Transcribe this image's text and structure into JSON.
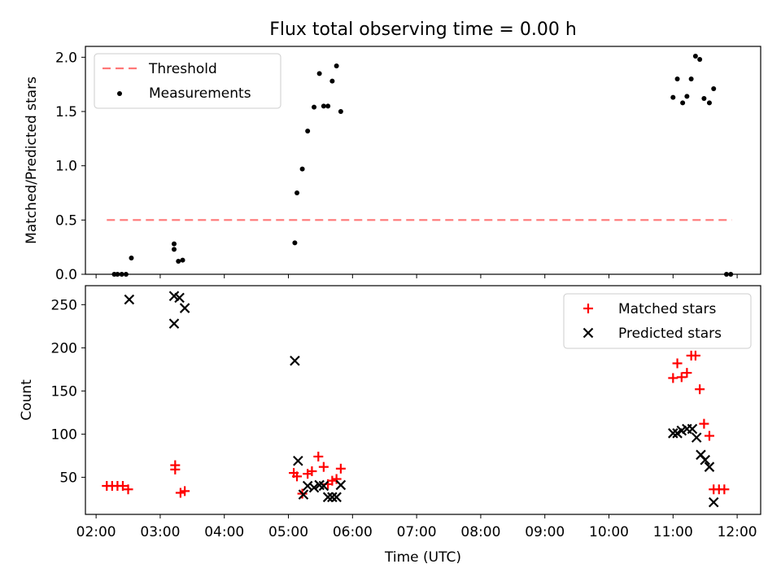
{
  "chart_data": [
    {
      "type": "scatter",
      "title": "Flux total observing time = 0.00 h",
      "xlabel": "",
      "ylabel": "Matched/Predicted stars",
      "xlim": [
        "01:50",
        "12:22"
      ],
      "ylim": [
        0,
        2.1
      ],
      "yticks": [
        "0.0",
        "0.5",
        "1.0",
        "1.5",
        "2.0"
      ],
      "legend_position": "top-left",
      "threshold": {
        "name": "Threshold",
        "color": "#ff7777",
        "style": "dashed",
        "y": 0.5,
        "x_range": [
          "02:10",
          "11:55"
        ]
      },
      "series": [
        {
          "name": "Measurements",
          "marker": "dot",
          "color": "#000000",
          "points": [
            {
              "x": "02:17",
              "y": 0.0
            },
            {
              "x": "02:20",
              "y": 0.0
            },
            {
              "x": "02:24",
              "y": 0.0
            },
            {
              "x": "02:28",
              "y": 0.0
            },
            {
              "x": "02:33",
              "y": 0.15
            },
            {
              "x": "03:13",
              "y": 0.28
            },
            {
              "x": "03:13",
              "y": 0.23
            },
            {
              "x": "03:17",
              "y": 0.12
            },
            {
              "x": "03:21",
              "y": 0.13
            },
            {
              "x": "05:06",
              "y": 0.29
            },
            {
              "x": "05:08",
              "y": 0.75
            },
            {
              "x": "05:13",
              "y": 0.97
            },
            {
              "x": "05:18",
              "y": 1.32
            },
            {
              "x": "05:24",
              "y": 1.54
            },
            {
              "x": "05:29",
              "y": 1.85
            },
            {
              "x": "05:33",
              "y": 1.55
            },
            {
              "x": "05:37",
              "y": 1.55
            },
            {
              "x": "05:41",
              "y": 1.78
            },
            {
              "x": "05:45",
              "y": 1.92
            },
            {
              "x": "05:49",
              "y": 1.5
            },
            {
              "x": "11:00",
              "y": 1.63
            },
            {
              "x": "11:04",
              "y": 1.8
            },
            {
              "x": "11:09",
              "y": 1.58
            },
            {
              "x": "11:13",
              "y": 1.64
            },
            {
              "x": "11:17",
              "y": 1.8
            },
            {
              "x": "11:21",
              "y": 2.01
            },
            {
              "x": "11:25",
              "y": 1.98
            },
            {
              "x": "11:29",
              "y": 1.62
            },
            {
              "x": "11:34",
              "y": 1.58
            },
            {
              "x": "11:38",
              "y": 1.71
            },
            {
              "x": "11:50",
              "y": 0.0
            },
            {
              "x": "11:54",
              "y": 0.0
            }
          ]
        }
      ]
    },
    {
      "type": "scatter",
      "title": "",
      "xlabel": "Time (UTC)",
      "ylabel": "Count",
      "xlim": [
        "01:50",
        "12:22"
      ],
      "ylim": [
        7,
        272
      ],
      "xticks": [
        "02:00",
        "03:00",
        "04:00",
        "05:00",
        "06:00",
        "07:00",
        "08:00",
        "09:00",
        "10:00",
        "11:00",
        "12:00"
      ],
      "yticks": [
        "50",
        "100",
        "150",
        "200",
        "250"
      ],
      "legend_position": "top-right",
      "series": [
        {
          "name": "Matched stars",
          "marker": "plus",
          "color": "#ff0000",
          "points": [
            {
              "x": "02:10",
              "y": 40
            },
            {
              "x": "02:15",
              "y": 40
            },
            {
              "x": "02:20",
              "y": 40
            },
            {
              "x": "02:25",
              "y": 40
            },
            {
              "x": "02:30",
              "y": 36
            },
            {
              "x": "03:14",
              "y": 64
            },
            {
              "x": "03:14",
              "y": 59
            },
            {
              "x": "03:19",
              "y": 32
            },
            {
              "x": "03:23",
              "y": 34
            },
            {
              "x": "05:05",
              "y": 55
            },
            {
              "x": "05:08",
              "y": 51
            },
            {
              "x": "05:13",
              "y": 31
            },
            {
              "x": "05:18",
              "y": 54
            },
            {
              "x": "05:22",
              "y": 57
            },
            {
              "x": "05:28",
              "y": 74
            },
            {
              "x": "05:33",
              "y": 62
            },
            {
              "x": "05:37",
              "y": 42
            },
            {
              "x": "05:41",
              "y": 46
            },
            {
              "x": "05:45",
              "y": 48
            },
            {
              "x": "05:49",
              "y": 60
            },
            {
              "x": "11:00",
              "y": 165
            },
            {
              "x": "11:04",
              "y": 182
            },
            {
              "x": "11:08",
              "y": 166
            },
            {
              "x": "11:13",
              "y": 171
            },
            {
              "x": "11:17",
              "y": 191
            },
            {
              "x": "11:21",
              "y": 191
            },
            {
              "x": "11:25",
              "y": 152
            },
            {
              "x": "11:29",
              "y": 112
            },
            {
              "x": "11:34",
              "y": 98
            },
            {
              "x": "11:38",
              "y": 36
            },
            {
              "x": "11:43",
              "y": 36
            },
            {
              "x": "11:48",
              "y": 36
            }
          ]
        },
        {
          "name": "Predicted stars",
          "marker": "x",
          "color": "#000000",
          "points": [
            {
              "x": "02:31",
              "y": 256
            },
            {
              "x": "03:13",
              "y": 260
            },
            {
              "x": "03:13",
              "y": 228
            },
            {
              "x": "03:18",
              "y": 258
            },
            {
              "x": "03:23",
              "y": 246
            },
            {
              "x": "05:06",
              "y": 185
            },
            {
              "x": "05:09",
              "y": 69
            },
            {
              "x": "05:14",
              "y": 30
            },
            {
              "x": "05:18",
              "y": 40
            },
            {
              "x": "05:24",
              "y": 38
            },
            {
              "x": "05:29",
              "y": 41
            },
            {
              "x": "05:33",
              "y": 40
            },
            {
              "x": "05:37",
              "y": 27
            },
            {
              "x": "05:41",
              "y": 27
            },
            {
              "x": "05:45",
              "y": 27
            },
            {
              "x": "05:49",
              "y": 41
            },
            {
              "x": "11:00",
              "y": 101
            },
            {
              "x": "11:04",
              "y": 101
            },
            {
              "x": "11:08",
              "y": 104
            },
            {
              "x": "11:13",
              "y": 106
            },
            {
              "x": "11:18",
              "y": 106
            },
            {
              "x": "11:22",
              "y": 96
            },
            {
              "x": "11:26",
              "y": 76
            },
            {
              "x": "11:30",
              "y": 70
            },
            {
              "x": "11:34",
              "y": 62
            },
            {
              "x": "11:38",
              "y": 21
            }
          ]
        }
      ]
    }
  ]
}
